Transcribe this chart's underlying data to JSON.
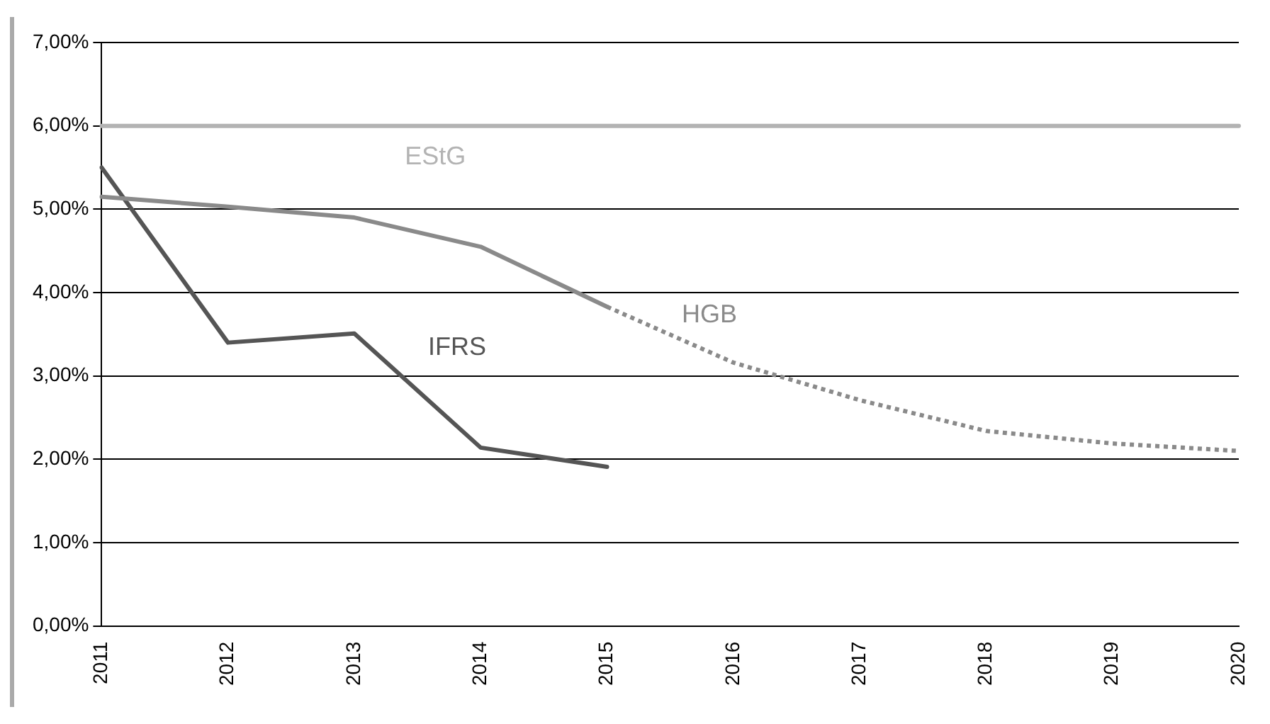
{
  "chart_data": {
    "type": "line",
    "categories": [
      "2011",
      "2012",
      "2013",
      "2014",
      "2015",
      "2016",
      "2017",
      "2018",
      "2019",
      "2020"
    ],
    "series": [
      {
        "name": "EStG",
        "color": "#b3b3b3",
        "values": [
          6,
          6,
          6,
          6,
          6,
          6,
          6,
          6,
          6,
          6
        ]
      },
      {
        "name": "HGB",
        "color": "#8a8a8a",
        "values": [
          5.15,
          5.03,
          4.9,
          4.55,
          3.83,
          null,
          null,
          null,
          null,
          null
        ]
      },
      {
        "color": "#8a8a8a",
        "line_style": "dotted",
        "values": [
          null,
          null,
          null,
          null,
          3.83,
          3.16,
          2.71,
          2.34,
          2.19,
          2.1
        ]
      },
      {
        "name": "IFRS",
        "color": "#555555",
        "values": [
          5.5,
          3.4,
          3.51,
          2.14,
          1.91,
          null,
          null,
          null,
          null,
          null
        ]
      }
    ],
    "ylim": [
      0,
      7
    ],
    "yticks": [
      {
        "value": 0,
        "label": "0,00%"
      },
      {
        "value": 1,
        "label": "1,00%"
      },
      {
        "value": 2,
        "label": "2,00%"
      },
      {
        "value": 3,
        "label": "3,00%"
      },
      {
        "value": 4,
        "label": "4,00%"
      },
      {
        "value": 5,
        "label": "5,00%"
      },
      {
        "value": 6,
        "label": "6,00%"
      },
      {
        "value": 7,
        "label": "7,00%"
      }
    ],
    "grid": "y",
    "legend": false,
    "marker": "none",
    "line_style": "solid"
  }
}
